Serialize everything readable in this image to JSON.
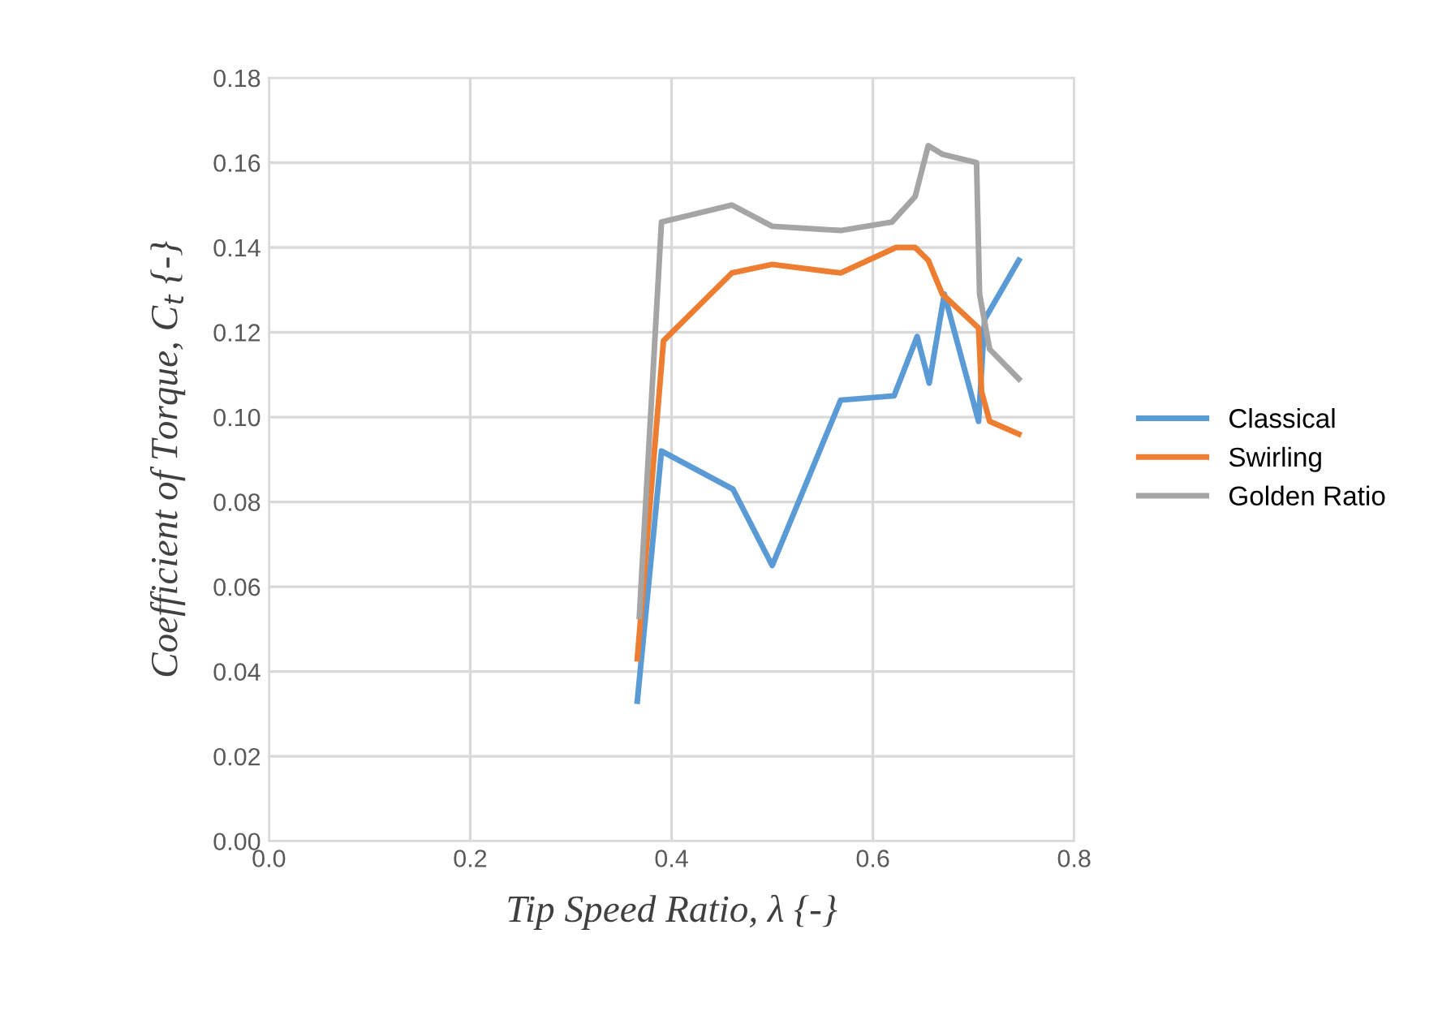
{
  "chart_data": {
    "type": "line",
    "xlabel": "Tip Speed Ratio, λ {-}",
    "ylabel": "Coefficient of Torque, C$_{t}$ {-}",
    "xlim": [
      0,
      0.8
    ],
    "xticks": [
      {
        "value": 0,
        "label": "0.0"
      },
      {
        "value": 0.2,
        "label": "0.2"
      },
      {
        "value": 0.4,
        "label": "0.4"
      },
      {
        "value": 0.6,
        "label": "0.6"
      },
      {
        "value": 0.8,
        "label": "0.8"
      }
    ],
    "ylim": [
      0,
      0.18
    ],
    "yticks": [
      {
        "value": 0,
        "label": "0.00"
      },
      {
        "value": 0.02,
        "label": "0.02"
      },
      {
        "value": 0.04,
        "label": "0.04"
      },
      {
        "value": 0.06,
        "label": "0.06"
      },
      {
        "value": 0.08,
        "label": "0.08"
      },
      {
        "value": 0.1,
        "label": "0.10"
      },
      {
        "value": 0.12,
        "label": "0.12"
      },
      {
        "value": 0.14,
        "label": "0.14"
      },
      {
        "value": 0.16,
        "label": "0.16"
      },
      {
        "value": 0.18,
        "label": "0.18"
      }
    ],
    "grid": true,
    "legend": "right",
    "marker": "none",
    "line_style": "solid",
    "series": [
      {
        "name": "Classical",
        "color": "#5b9bd5",
        "x": [
          0.366,
          0.39,
          0.461,
          0.5,
          0.568,
          0.621,
          0.644,
          0.656,
          0.671,
          0.705,
          0.711,
          0.745
        ],
        "values": [
          0.033,
          0.092,
          0.083,
          0.065,
          0.104,
          0.105,
          0.119,
          0.108,
          0.129,
          0.099,
          0.123,
          0.137
        ]
      },
      {
        "name": "Swirling",
        "color": "#ed7d31",
        "x": [
          0.366,
          0.392,
          0.46,
          0.5,
          0.568,
          0.623,
          0.642,
          0.655,
          0.669,
          0.705,
          0.708,
          0.716,
          0.745
        ],
        "values": [
          0.043,
          0.118,
          0.134,
          0.136,
          0.134,
          0.14,
          0.14,
          0.137,
          0.129,
          0.121,
          0.106,
          0.099,
          0.096
        ]
      },
      {
        "name": "Golden Ratio",
        "color": "#a5a5a5",
        "x": [
          0.368,
          0.39,
          0.46,
          0.5,
          0.568,
          0.619,
          0.642,
          0.655,
          0.669,
          0.703,
          0.706,
          0.716,
          0.745
        ],
        "values": [
          0.053,
          0.146,
          0.15,
          0.145,
          0.144,
          0.146,
          0.152,
          0.164,
          0.162,
          0.16,
          0.129,
          0.116,
          0.109
        ]
      }
    ]
  }
}
